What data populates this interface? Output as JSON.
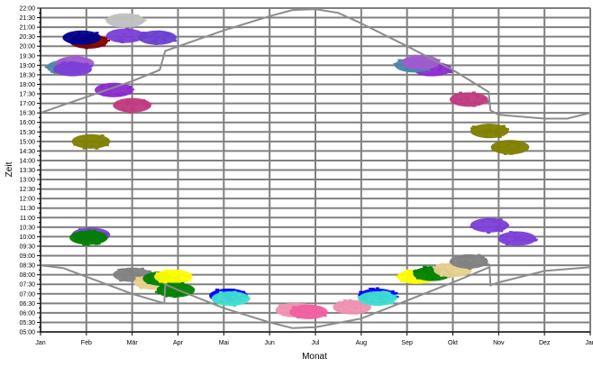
{
  "chart_data": {
    "type": "scatter",
    "xlabel": "Monat",
    "ylabel": "Zeit",
    "grid": true,
    "xlim": [
      0,
      12
    ],
    "ylim": [
      "05:00",
      "22:00"
    ],
    "x_ticks": [
      {
        "label": "Jan",
        "month": 0
      },
      {
        "label": "Feb",
        "month": 1
      },
      {
        "label": "Mär",
        "month": 2
      },
      {
        "label": "Apr",
        "month": 3
      },
      {
        "label": "Mai",
        "month": 4
      },
      {
        "label": "Jun",
        "month": 5
      },
      {
        "label": "Jul",
        "month": 6
      },
      {
        "label": "Aug",
        "month": 7
      },
      {
        "label": "Sep",
        "month": 8
      },
      {
        "label": "Okt",
        "month": 9
      },
      {
        "label": "Nov",
        "month": 10
      },
      {
        "label": "Dez",
        "month": 11
      },
      {
        "label": "Jan",
        "month": 12
      }
    ],
    "y_ticks": [
      "05:00",
      "05:30",
      "06:00",
      "06:30",
      "07:00",
      "07:30",
      "08:00",
      "08:30",
      "09:00",
      "09:30",
      "10:00",
      "10:30",
      "11:00",
      "11:30",
      "12:00",
      "12:30",
      "13:00",
      "13:30",
      "14:00",
      "14:30",
      "15:00",
      "15:30",
      "16:00",
      "16:30",
      "17:00",
      "17:30",
      "18:00",
      "18:30",
      "19:00",
      "19:30",
      "20:00",
      "20:30",
      "21:00",
      "21:30",
      "22:00"
    ],
    "curves": {
      "color": "#8c8c8c",
      "sunset": [
        [
          0,
          16.5
        ],
        [
          1,
          17.33
        ],
        [
          2,
          18.17
        ],
        [
          2.6,
          18.75
        ],
        [
          2.72,
          19.75
        ],
        [
          4,
          20.83
        ],
        [
          5,
          21.58
        ],
        [
          5.5,
          21.9
        ],
        [
          6,
          21.95
        ],
        [
          6.5,
          21.75
        ],
        [
          7,
          21.2
        ],
        [
          8,
          20.0
        ],
        [
          9,
          18.75
        ],
        [
          9.78,
          17.6
        ],
        [
          9.82,
          16.63
        ],
        [
          10,
          16.4
        ],
        [
          11,
          16.2
        ],
        [
          11.5,
          16.2
        ],
        [
          12,
          16.5
        ]
      ],
      "sunrise": [
        [
          0,
          8.5
        ],
        [
          0.5,
          8.35
        ],
        [
          1,
          7.9
        ],
        [
          2,
          7.0
        ],
        [
          2.7,
          6.5
        ],
        [
          2.72,
          7.5
        ],
        [
          3,
          7.2
        ],
        [
          4,
          6.25
        ],
        [
          5,
          5.5
        ],
        [
          5.5,
          5.2
        ],
        [
          6,
          5.25
        ],
        [
          7,
          5.7
        ],
        [
          8,
          6.65
        ],
        [
          9,
          7.6
        ],
        [
          9.8,
          8.4
        ],
        [
          9.82,
          7.45
        ],
        [
          10,
          7.6
        ],
        [
          11,
          8.2
        ],
        [
          12,
          8.4
        ]
      ]
    },
    "clusters": [
      {
        "month": 1.05,
        "time": 20.25,
        "color": "#800000"
      },
      {
        "month": 0.9,
        "time": 20.45,
        "color": "#00008b"
      },
      {
        "month": 1.85,
        "time": 20.55,
        "color": "#7b3fd6"
      },
      {
        "month": 2.55,
        "time": 20.45,
        "color": "#6a3fd0"
      },
      {
        "month": 1.85,
        "time": 21.35,
        "color": "#c0c0c0"
      },
      {
        "month": 0.55,
        "time": 18.9,
        "color": "#4a86a8"
      },
      {
        "month": 0.75,
        "time": 19.1,
        "color": "#a05ad0"
      },
      {
        "month": 0.7,
        "time": 18.8,
        "color": "#7b3fd6"
      },
      {
        "month": 1.6,
        "time": 17.7,
        "color": "#8a2ad0"
      },
      {
        "month": 2.0,
        "time": 16.9,
        "color": "#c03a80"
      },
      {
        "month": 1.1,
        "time": 15.0,
        "color": "#808000"
      },
      {
        "month": 1.1,
        "time": 10.1,
        "color": "#7b3fd6"
      },
      {
        "month": 1.05,
        "time": 9.95,
        "color": "#008000"
      },
      {
        "month": 2.0,
        "time": 8.0,
        "color": "#808080"
      },
      {
        "month": 2.45,
        "time": 7.6,
        "color": "#e8d090"
      },
      {
        "month": 2.65,
        "time": 7.8,
        "color": "#008000"
      },
      {
        "month": 2.9,
        "time": 7.9,
        "color": "#ffff00"
      },
      {
        "month": 2.95,
        "time": 7.2,
        "color": "#008000"
      },
      {
        "month": 4.1,
        "time": 6.9,
        "color": "#0000ff"
      },
      {
        "month": 4.15,
        "time": 6.75,
        "color": "#40e0d0"
      },
      {
        "month": 5.55,
        "time": 6.15,
        "color": "#f090b0"
      },
      {
        "month": 5.85,
        "time": 6.05,
        "color": "#f060a0"
      },
      {
        "month": 6.8,
        "time": 6.3,
        "color": "#f090b0"
      },
      {
        "month": 7.35,
        "time": 6.9,
        "color": "#0000ff"
      },
      {
        "month": 7.35,
        "time": 6.75,
        "color": "#40e0d0"
      },
      {
        "month": 8.2,
        "time": 7.9,
        "color": "#ffff00"
      },
      {
        "month": 8.55,
        "time": 8.05,
        "color": "#008000"
      },
      {
        "month": 9.0,
        "time": 8.25,
        "color": "#e8d090"
      },
      {
        "month": 9.35,
        "time": 8.7,
        "color": "#808080"
      },
      {
        "month": 9.8,
        "time": 10.6,
        "color": "#7b3fd6"
      },
      {
        "month": 10.4,
        "time": 9.9,
        "color": "#7b3fd6"
      },
      {
        "month": 10.25,
        "time": 14.7,
        "color": "#808000"
      },
      {
        "month": 9.8,
        "time": 15.55,
        "color": "#808000"
      },
      {
        "month": 9.35,
        "time": 17.2,
        "color": "#c03a80"
      },
      {
        "month": 8.55,
        "time": 18.8,
        "color": "#8a2ad0"
      },
      {
        "month": 8.15,
        "time": 19.0,
        "color": "#4a86a8"
      },
      {
        "month": 8.3,
        "time": 19.15,
        "color": "#a05ad0"
      }
    ]
  }
}
